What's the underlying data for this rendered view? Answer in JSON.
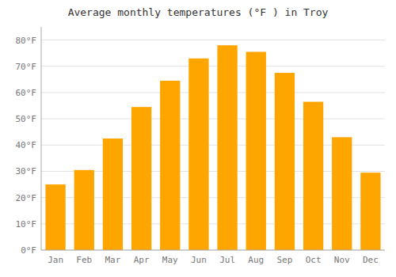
{
  "chart_data": {
    "type": "bar",
    "title": "Average monthly temperatures (°F ) in Troy",
    "categories": [
      "Jan",
      "Feb",
      "Mar",
      "Apr",
      "May",
      "Jun",
      "Jul",
      "Aug",
      "Sep",
      "Oct",
      "Nov",
      "Dec"
    ],
    "values": [
      25,
      30.5,
      42.5,
      54.5,
      64.5,
      73,
      78,
      75.5,
      67.5,
      56.5,
      43,
      29.5
    ],
    "color": "#FFA500",
    "ylim": [
      0,
      85
    ],
    "yticks": [
      {
        "value": 0,
        "label": "0°F"
      },
      {
        "value": 10,
        "label": "10°F"
      },
      {
        "value": 20,
        "label": "20°F"
      },
      {
        "value": 30,
        "label": "30°F"
      },
      {
        "value": 40,
        "label": "40°F"
      },
      {
        "value": 50,
        "label": "50°F"
      },
      {
        "value": 60,
        "label": "60°F"
      },
      {
        "value": 70,
        "label": "70°F"
      },
      {
        "value": 80,
        "label": "80°F"
      }
    ],
    "grid": true
  }
}
